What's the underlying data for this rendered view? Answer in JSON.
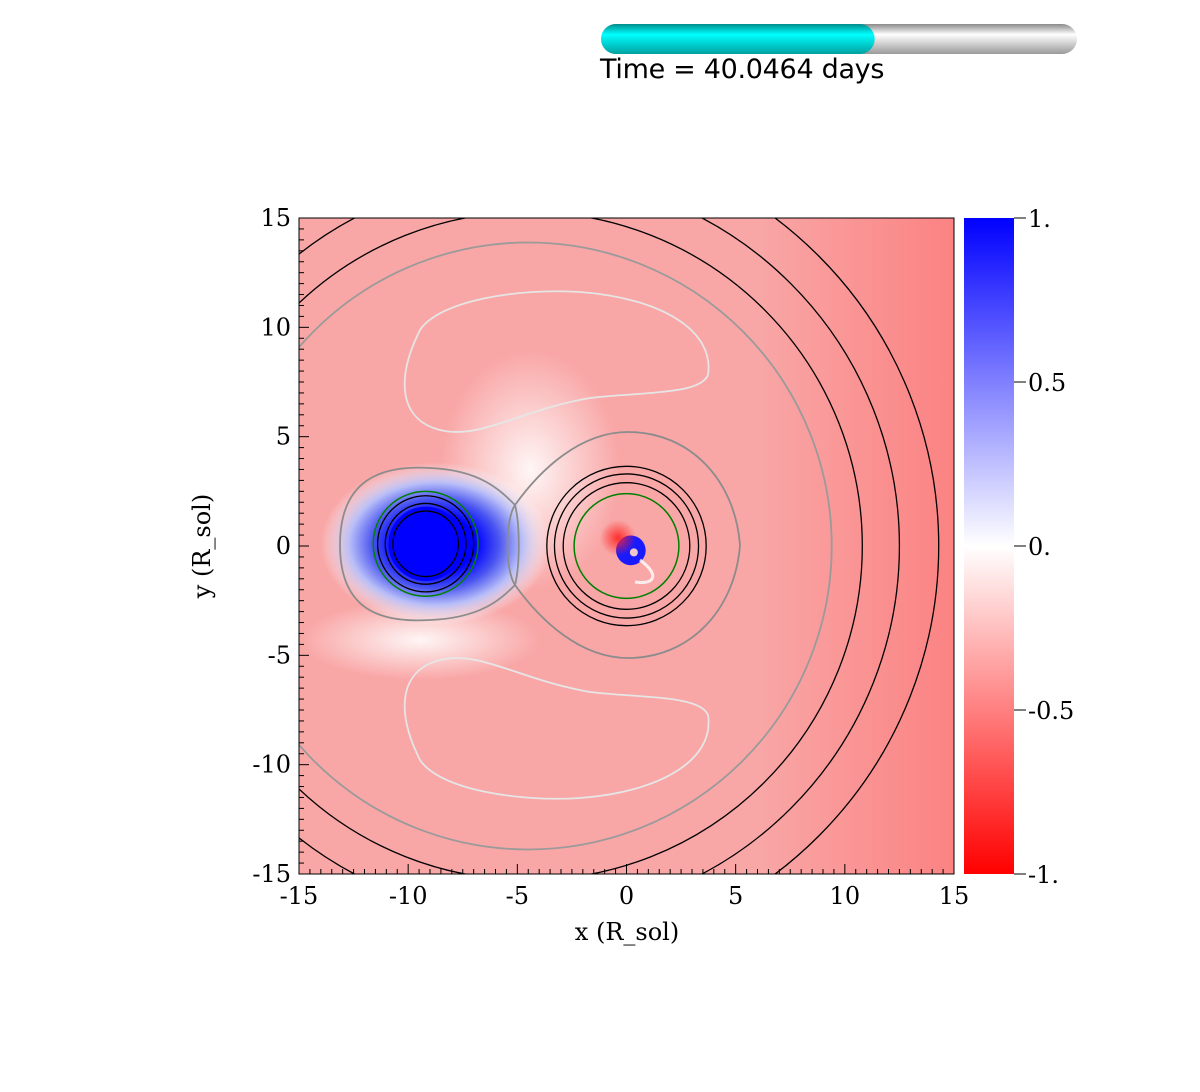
{
  "time_display": {
    "label": "Time = 40.0464 days",
    "progress_fraction": 0.575,
    "fill_color": "#00e5e5",
    "track_color": "#d9d9d9"
  },
  "chart_data": {
    "type": "heatmap",
    "xlabel": "x (R_sol)",
    "ylabel": "y (R_sol)",
    "xlim": [
      -15,
      15
    ],
    "ylim": [
      -15,
      15
    ],
    "x_ticks": [
      -15,
      -10,
      -5,
      0,
      5,
      10,
      15
    ],
    "y_ticks": [
      -15,
      -10,
      -5,
      0,
      5,
      10,
      15
    ],
    "x_tick_labels": [
      "-15",
      "-10",
      "-5",
      "0",
      "5",
      "10",
      "15"
    ],
    "y_tick_labels": [
      "-15",
      "-10",
      "-5",
      "0",
      "5",
      "10",
      "15"
    ],
    "colorbar": {
      "range": [
        -1,
        1
      ],
      "ticks": [
        1,
        0.5,
        0,
        -0.5,
        -1
      ],
      "tick_labels": [
        "1.",
        "0.5",
        "0.",
        "-0.5",
        "-1."
      ],
      "colors": {
        "max": "#0000ff",
        "mid": "#ffffff",
        "min": "#ff0000"
      }
    },
    "background_value": -0.35,
    "objects": [
      {
        "kind": "star",
        "x": -9.2,
        "y": 0.1,
        "radius": 1.7,
        "value": 1.0
      },
      {
        "kind": "companion",
        "x": 0.2,
        "y": -0.2,
        "radius": 0.45,
        "value": 1.0
      }
    ],
    "green_circles": [
      {
        "cx": -9.2,
        "cy": 0.1,
        "r": 2.4,
        "color": "#008000"
      },
      {
        "cx": 0.0,
        "cy": 0.0,
        "r": 2.4,
        "color": "#008000"
      }
    ],
    "black_circles": [
      {
        "cx": -9.2,
        "cy": 0.1,
        "r": 1.5
      },
      {
        "cx": -9.2,
        "cy": 0.1,
        "r": 1.85
      },
      {
        "cx": -9.2,
        "cy": 0.1,
        "r": 2.2
      },
      {
        "cx": 0.0,
        "cy": 0.0,
        "r": 2.9
      },
      {
        "cx": 0.0,
        "cy": 0.0,
        "r": 3.3
      },
      {
        "cx": 0.0,
        "cy": 0.0,
        "r": 3.65
      },
      {
        "cx": -4.5,
        "cy": 0.0,
        "r": 15.3
      },
      {
        "cx": -4.5,
        "cy": 0.0,
        "r": 17.0
      },
      {
        "cx": -4.5,
        "cy": 0.0,
        "r": 18.8
      }
    ],
    "gray_circles": [
      {
        "cx": -4.5,
        "cy": 0.0,
        "r": 13.9,
        "color": "#9a9a9a"
      }
    ]
  }
}
